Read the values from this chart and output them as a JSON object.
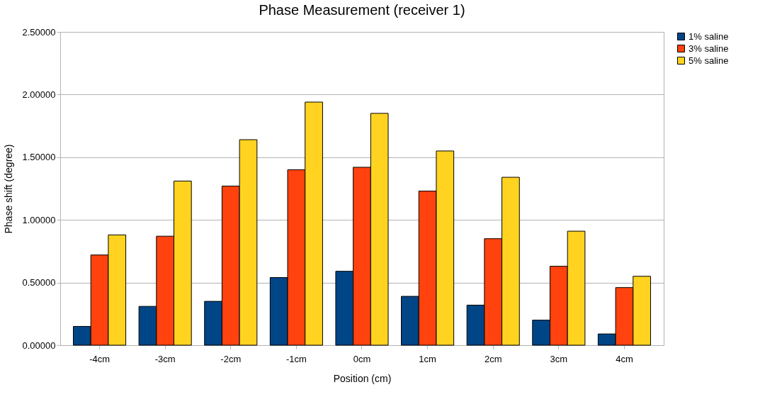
{
  "chart_data": {
    "type": "bar",
    "title": "Phase Measurement (receiver 1)",
    "xlabel": "Position (cm)",
    "ylabel": "Phase shift (degree)",
    "categories": [
      "-4cm",
      "-3cm",
      "-2cm",
      "-1cm",
      "0cm",
      "1cm",
      "2cm",
      "3cm",
      "4cm"
    ],
    "series": [
      {
        "name": "1% saline",
        "color": "#004586",
        "values": [
          0.15,
          0.31,
          0.35,
          0.54,
          0.59,
          0.39,
          0.32,
          0.2,
          0.09
        ]
      },
      {
        "name": "3% saline",
        "color": "#ff420e",
        "values": [
          0.72,
          0.87,
          1.27,
          1.4,
          1.42,
          1.23,
          0.85,
          0.63,
          0.46
        ]
      },
      {
        "name": "5% saline",
        "color": "#ffd320",
        "values": [
          0.88,
          1.31,
          1.64,
          1.94,
          1.85,
          1.55,
          1.34,
          0.91,
          0.55
        ]
      }
    ],
    "ylim": [
      0,
      2.5
    ],
    "yticks": [
      {
        "value": 0,
        "label": "0.00000"
      },
      {
        "value": 0.5,
        "label": "0.50000"
      },
      {
        "value": 1,
        "label": "1.00000"
      },
      {
        "value": 1.5,
        "label": "1.50000"
      },
      {
        "value": 2,
        "label": "2.00000"
      },
      {
        "value": 2.5,
        "label": "2.50000"
      }
    ],
    "grid": "y",
    "legend": "right"
  }
}
